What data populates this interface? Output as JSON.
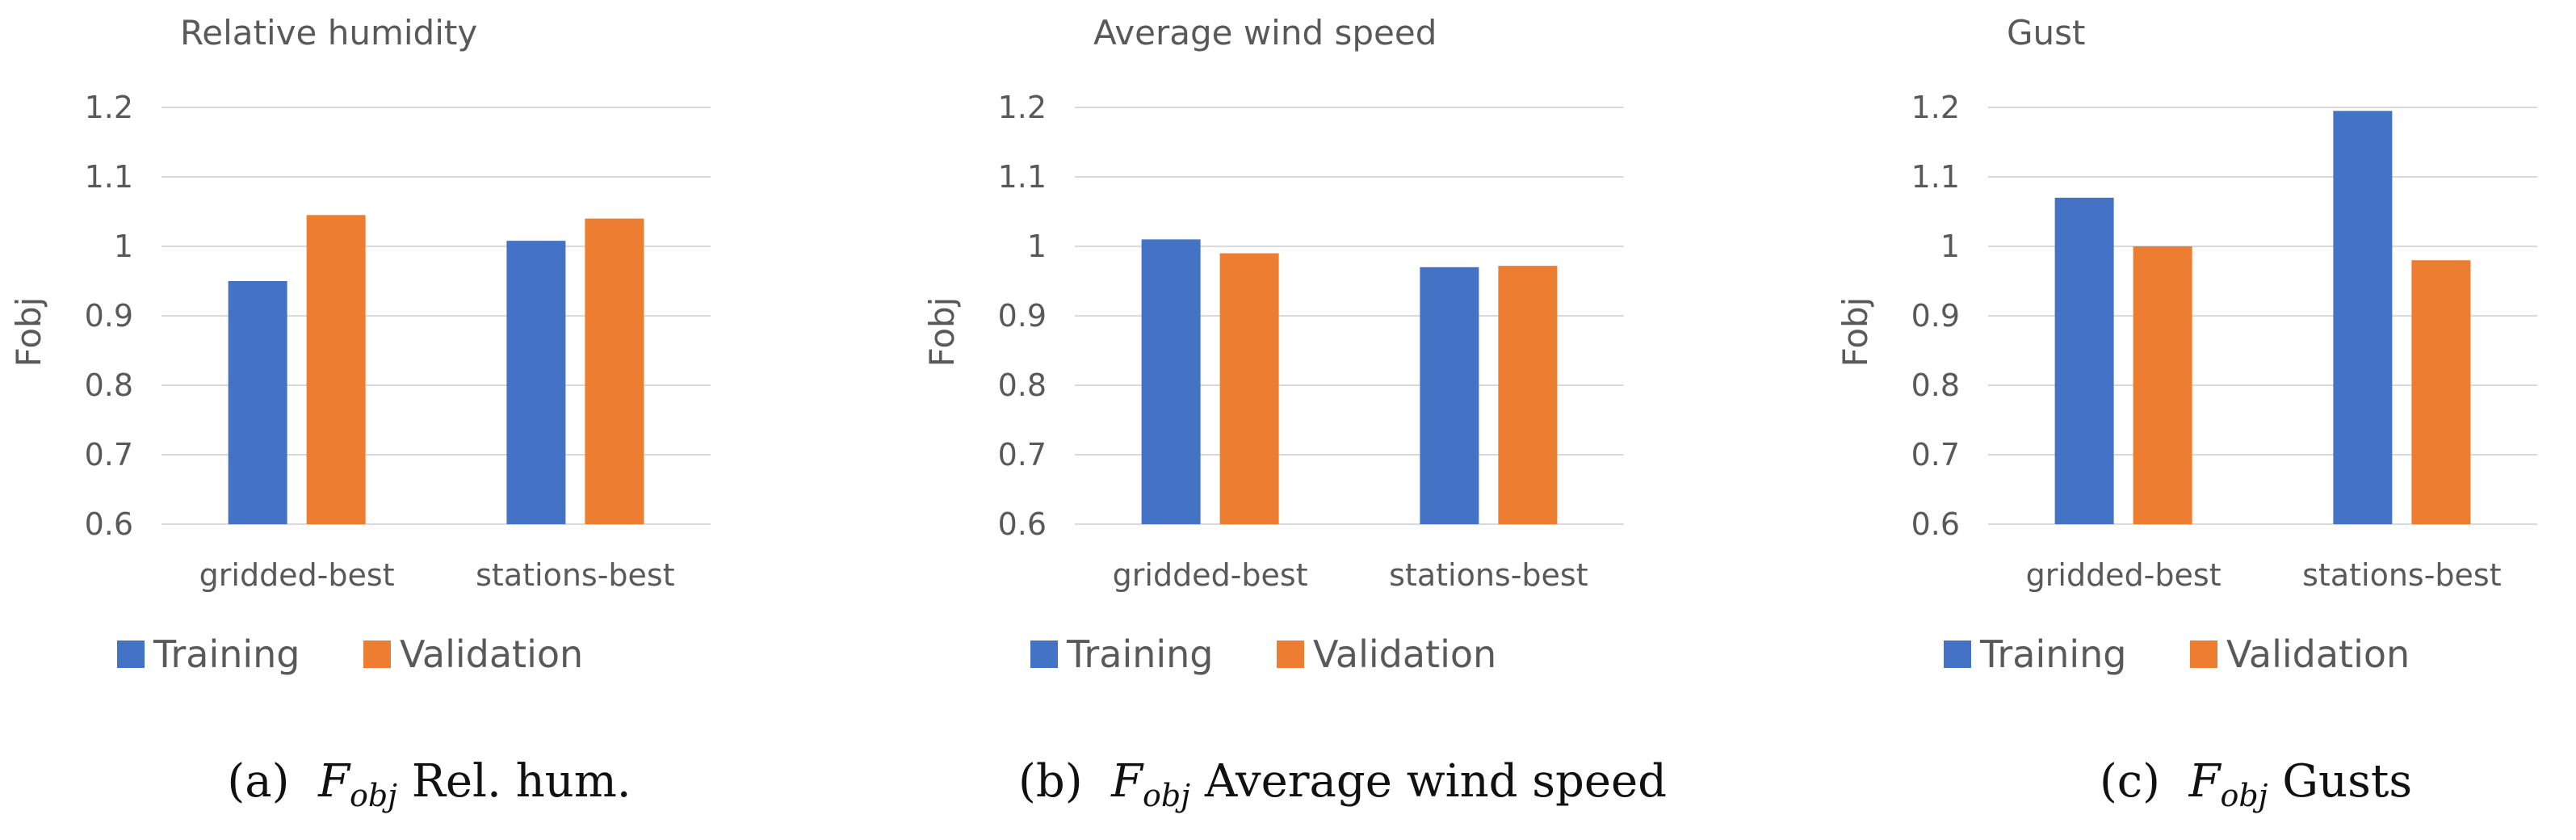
{
  "colors": {
    "training": "#4472C4",
    "validation": "#ED7D31",
    "grid": "#D9D9D9",
    "text": "#595959"
  },
  "chart_data": [
    {
      "type": "bar",
      "title": "Relative humidity",
      "xlabel": "",
      "ylabel": "Fobj",
      "ylim": [
        0.6,
        1.2
      ],
      "yticks": [
        "0.6",
        "0.7",
        "0.8",
        "0.9",
        "1",
        "1.1",
        "1.2"
      ],
      "grid": true,
      "legend": "bottom-left",
      "categories": [
        "gridded-best",
        "stations-best"
      ],
      "series": [
        {
          "name": "Training",
          "values": [
            0.95,
            1.008
          ]
        },
        {
          "name": "Validation",
          "values": [
            1.045,
            1.04
          ]
        }
      ],
      "caption": {
        "label": "(a)",
        "symbol": "F",
        "subscript": "obj",
        "text": "Rel. hum."
      }
    },
    {
      "type": "bar",
      "title": "Average wind speed",
      "xlabel": "",
      "ylabel": "Fobj",
      "ylim": [
        0.6,
        1.2
      ],
      "yticks": [
        "0.6",
        "0.7",
        "0.8",
        "0.9",
        "1",
        "1.1",
        "1.2"
      ],
      "grid": true,
      "legend": "bottom-left",
      "categories": [
        "gridded-best",
        "stations-best"
      ],
      "series": [
        {
          "name": "Training",
          "values": [
            1.01,
            0.97
          ]
        },
        {
          "name": "Validation",
          "values": [
            0.99,
            0.972
          ]
        }
      ],
      "caption": {
        "label": "(b)",
        "symbol": "F",
        "subscript": "obj",
        "text": "Average wind speed"
      }
    },
    {
      "type": "bar",
      "title": "Gust",
      "xlabel": "",
      "ylabel": "Fobj",
      "ylim": [
        0.6,
        1.2
      ],
      "yticks": [
        "0.6",
        "0.7",
        "0.8",
        "0.9",
        "1",
        "1.1",
        "1.2"
      ],
      "grid": true,
      "legend": "bottom-left",
      "categories": [
        "gridded-best",
        "stations-best"
      ],
      "series": [
        {
          "name": "Training",
          "values": [
            1.07,
            1.195
          ]
        },
        {
          "name": "Validation",
          "values": [
            1.0,
            0.98
          ]
        }
      ],
      "caption": {
        "label": "(c)",
        "symbol": "F",
        "subscript": "obj",
        "text": "Gusts"
      }
    }
  ]
}
